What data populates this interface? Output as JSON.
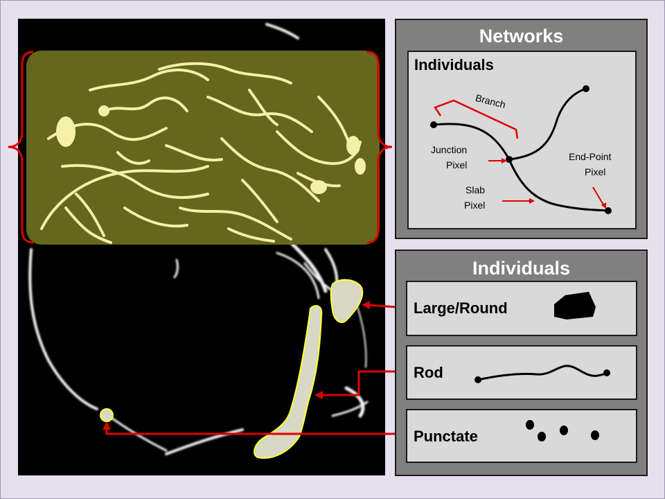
{
  "networks_panel": {
    "title": "Networks",
    "subtitle": "Individuals",
    "branch_label": "Branch",
    "junction_label": [
      "Junction",
      "Pixel"
    ],
    "endpoint_label": [
      "End-Point",
      "Pixel"
    ],
    "slab_label": [
      "Slab",
      "Pixel"
    ]
  },
  "individuals_panel": {
    "title": "Individuals",
    "items": [
      {
        "label": "Large/Round"
      },
      {
        "label": "Rod"
      },
      {
        "label": "Punctate"
      }
    ]
  },
  "colors": {
    "background": "#e6e0ee",
    "panel": "#808080",
    "inner_box": "#d9d9d9",
    "arrow": "#ff0000",
    "highlight_overlay": "#7a7a2a",
    "outline": "#ffff33"
  }
}
